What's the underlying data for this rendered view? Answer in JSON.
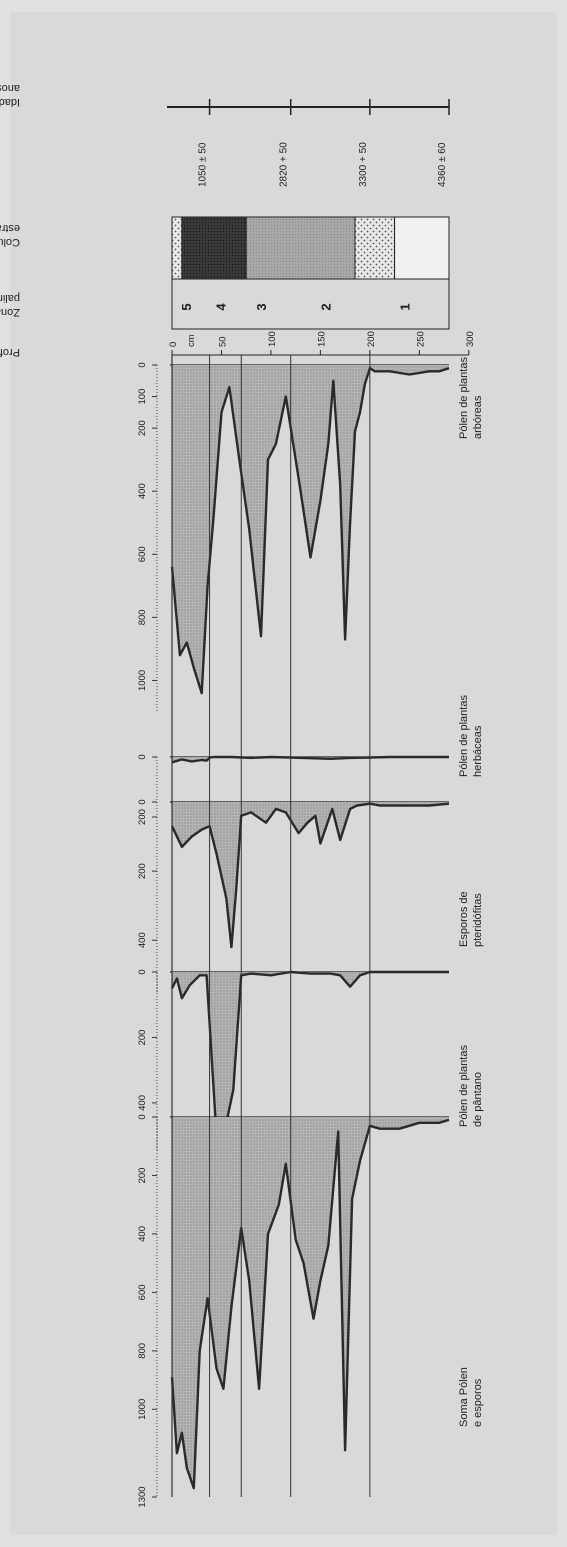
{
  "header": {
    "age_label": [
      "Idade em",
      "anos BP"
    ],
    "column_label": [
      "Coluna",
      "estratiorafica"
    ],
    "zones_label": [
      "Zonas",
      "palinológicas"
    ],
    "depth_label": "Profundidade",
    "depth_unit": "cm"
  },
  "ages": [
    {
      "label": "1050 ± 50",
      "depth": 38
    },
    {
      "label": "2820 + 50",
      "depth": 120
    },
    {
      "label": "3300 + 50",
      "depth": 200
    },
    {
      "label": "4360 ± 60",
      "depth": 280
    }
  ],
  "depth_ticks": [
    "0",
    "50",
    "100",
    "150",
    "200",
    "250",
    "300"
  ],
  "zones": [
    {
      "label": "5",
      "from": 0,
      "to": 38
    },
    {
      "label": "4",
      "from": 38,
      "to": 70
    },
    {
      "label": "3",
      "from": 70,
      "to": 120
    },
    {
      "label": "2",
      "from": 120,
      "to": 200
    },
    {
      "label": "1",
      "from": 200,
      "to": 280
    }
  ],
  "strat_column": [
    {
      "from": 0,
      "to": 10,
      "pattern": "light-dotted"
    },
    {
      "from": 10,
      "to": 75,
      "pattern": "dark"
    },
    {
      "from": 75,
      "to": 185,
      "pattern": "gray"
    },
    {
      "from": 185,
      "to": 225,
      "pattern": "light-dotted"
    },
    {
      "from": 225,
      "to": 280,
      "pattern": "blank"
    }
  ],
  "chart_data": [
    {
      "type": "area",
      "title": [
        "Pólen de plantas",
        "arbóreas"
      ],
      "xticks": [
        "0",
        "100",
        "200",
        "400",
        "600",
        "800",
        "1000"
      ],
      "xlim": [
        0,
        1100
      ],
      "depth": [
        0,
        8,
        15,
        22,
        30,
        36,
        42,
        50,
        58,
        68,
        78,
        90,
        97,
        105,
        115,
        122,
        130,
        140,
        150,
        158,
        163,
        170,
        175,
        180,
        185,
        190,
        195,
        200,
        205,
        220,
        240,
        260,
        270,
        280
      ],
      "values": [
        640,
        920,
        880,
        960,
        1040,
        700,
        480,
        150,
        70,
        300,
        520,
        860,
        300,
        250,
        100,
        240,
        400,
        610,
        430,
        250,
        50,
        380,
        870,
        500,
        210,
        150,
        60,
        10,
        20,
        20,
        30,
        20,
        20,
        10
      ]
    },
    {
      "type": "area",
      "title": [
        "Pólen de plantas",
        "herbáceas"
      ],
      "xticks": [
        "0",
        "200"
      ],
      "xlim": [
        0,
        300
      ],
      "depth": [
        0,
        10,
        20,
        30,
        35,
        38,
        42,
        60,
        80,
        100,
        120,
        140,
        160,
        180,
        200,
        220,
        240,
        260,
        280
      ],
      "values": [
        18,
        8,
        15,
        10,
        12,
        2,
        0,
        0,
        3,
        0,
        2,
        4,
        6,
        3,
        2,
        0,
        0,
        0,
        0
      ]
    },
    {
      "type": "area",
      "title": [
        "Esporos de",
        "pteridófitas"
      ],
      "xticks": [
        "0",
        "200",
        "400"
      ],
      "xlim": [
        0,
        550
      ],
      "depth": [
        0,
        10,
        20,
        30,
        38,
        45,
        55,
        60,
        65,
        70,
        80,
        95,
        105,
        115,
        128,
        137,
        145,
        150,
        162,
        170,
        180,
        187,
        200,
        210,
        240,
        260,
        280
      ],
      "values": [
        70,
        130,
        100,
        80,
        70,
        150,
        280,
        420,
        250,
        40,
        30,
        60,
        20,
        30,
        90,
        60,
        40,
        120,
        20,
        110,
        20,
        10,
        5,
        10,
        10,
        10,
        5
      ],
      "extra_row": {
        "depth": 48,
        "value": 200
      }
    },
    {
      "type": "area",
      "title": [
        "Pólen de plantas",
        "de pântano"
      ],
      "xticks": [
        "0",
        "200",
        "400"
      ],
      "xlim": [
        0,
        550
      ],
      "depth": [
        0,
        5,
        10,
        18,
        28,
        35,
        45,
        55,
        62,
        70,
        80,
        100,
        120,
        140,
        160,
        170,
        180,
        190,
        200,
        220,
        240,
        260,
        280
      ],
      "values": [
        50,
        20,
        80,
        40,
        10,
        10,
        500,
        460,
        360,
        10,
        5,
        10,
        0,
        5,
        5,
        10,
        45,
        10,
        0,
        0,
        0,
        0,
        0
      ]
    },
    {
      "type": "area",
      "title": [
        "Soma Pólen",
        "e esporos"
      ],
      "xticks": [
        "0",
        "200",
        "400",
        "600",
        "800",
        "1000",
        "1300"
      ],
      "xlim": [
        0,
        1300
      ],
      "depth": [
        0,
        5,
        10,
        15,
        22,
        28,
        36,
        45,
        52,
        60,
        70,
        78,
        88,
        97,
        108,
        115,
        125,
        133,
        143,
        150,
        158,
        168,
        175,
        182,
        190,
        200,
        210,
        230,
        250,
        270,
        280
      ],
      "values": [
        890,
        1150,
        1080,
        1200,
        1270,
        800,
        620,
        860,
        930,
        650,
        380,
        560,
        930,
        400,
        300,
        160,
        420,
        500,
        690,
        560,
        440,
        50,
        1140,
        280,
        150,
        30,
        40,
        40,
        20,
        20,
        10
      ]
    }
  ]
}
